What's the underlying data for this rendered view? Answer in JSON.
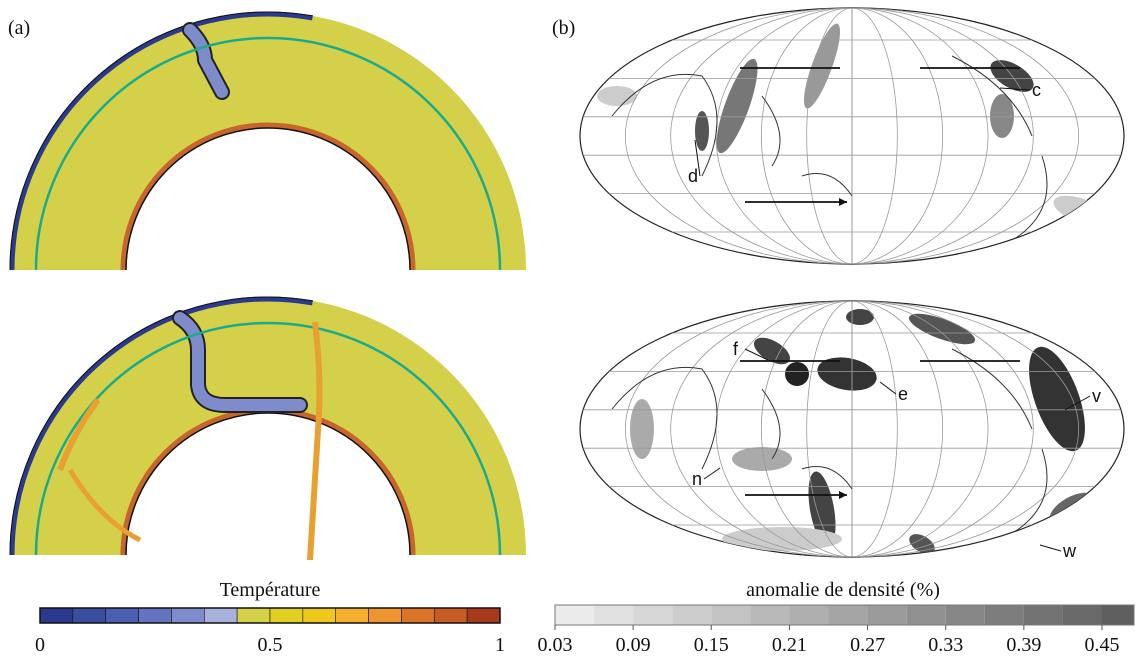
{
  "panel_a": {
    "label": "(a)",
    "colorbar": {
      "title": "Température",
      "ticks": [
        0,
        0.5,
        1
      ],
      "colors": [
        "#2b3a8f",
        "#3a4ea0",
        "#4a5fb0",
        "#6474c0",
        "#7e8ccc",
        "#a7b1dc",
        "#d4d04a",
        "#e2d020",
        "#f0c81a",
        "#f5b030",
        "#ee9430",
        "#dc7428",
        "#c85a24",
        "#a83a1c"
      ]
    }
  },
  "panel_b": {
    "label": "(b)",
    "labels_top": [
      "c",
      "d"
    ],
    "labels_bottom": [
      "f",
      "e",
      "v",
      "n",
      "w"
    ],
    "colorbar": {
      "title": "anomalie de densité (%)",
      "ticks": [
        0.03,
        0.09,
        0.15,
        0.21,
        0.27,
        0.33,
        0.39,
        0.45
      ]
    }
  }
}
